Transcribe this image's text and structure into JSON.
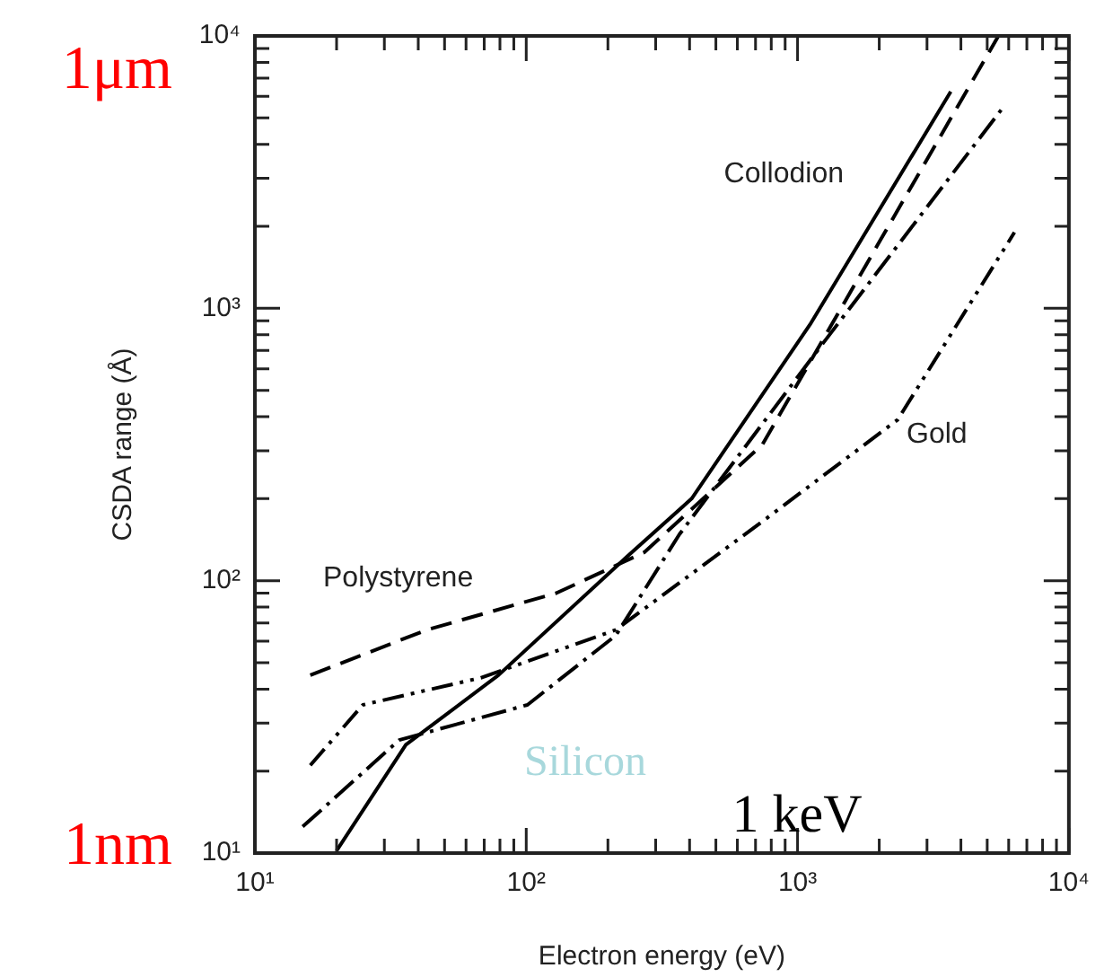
{
  "chart_data": {
    "type": "line",
    "xlabel": "Electron energy (eV)",
    "ylabel": "CSDA range (Å)",
    "log": "xy",
    "grid": false,
    "legend": false,
    "xlim": [
      10,
      10000
    ],
    "ylim": [
      10,
      10000
    ],
    "xticks": [
      {
        "value": 10,
        "label": "10¹"
      },
      {
        "value": 20,
        "label": null
      },
      {
        "value": 30,
        "label": null
      },
      {
        "value": 40,
        "label": null
      },
      {
        "value": 50,
        "label": null
      },
      {
        "value": 60,
        "label": null
      },
      {
        "value": 70,
        "label": null
      },
      {
        "value": 80,
        "label": null
      },
      {
        "value": 90,
        "label": null
      },
      {
        "value": 100,
        "label": "10²"
      },
      {
        "value": 200,
        "label": null
      },
      {
        "value": 300,
        "label": null
      },
      {
        "value": 400,
        "label": null
      },
      {
        "value": 500,
        "label": null
      },
      {
        "value": 600,
        "label": null
      },
      {
        "value": 700,
        "label": null
      },
      {
        "value": 800,
        "label": null
      },
      {
        "value": 900,
        "label": null
      },
      {
        "value": 1000,
        "label": "10³"
      },
      {
        "value": 2000,
        "label": null
      },
      {
        "value": 3000,
        "label": null
      },
      {
        "value": 4000,
        "label": null
      },
      {
        "value": 5000,
        "label": null
      },
      {
        "value": 6000,
        "label": null
      },
      {
        "value": 7000,
        "label": null
      },
      {
        "value": 8000,
        "label": null
      },
      {
        "value": 9000,
        "label": null
      },
      {
        "value": 10000,
        "label": "10⁴"
      }
    ],
    "yticks": [
      {
        "value": 10,
        "label": "10¹"
      },
      {
        "value": 20,
        "label": null
      },
      {
        "value": 30,
        "label": null
      },
      {
        "value": 40,
        "label": null
      },
      {
        "value": 50,
        "label": null
      },
      {
        "value": 60,
        "label": null
      },
      {
        "value": 70,
        "label": null
      },
      {
        "value": 80,
        "label": null
      },
      {
        "value": 90,
        "label": null
      },
      {
        "value": 100,
        "label": "10²"
      },
      {
        "value": 200,
        "label": null
      },
      {
        "value": 300,
        "label": null
      },
      {
        "value": 400,
        "label": null
      },
      {
        "value": 500,
        "label": null
      },
      {
        "value": 600,
        "label": null
      },
      {
        "value": 700,
        "label": null
      },
      {
        "value": 800,
        "label": null
      },
      {
        "value": 900,
        "label": null
      },
      {
        "value": 1000,
        "label": "10³"
      },
      {
        "value": 2000,
        "label": null
      },
      {
        "value": 3000,
        "label": null
      },
      {
        "value": 4000,
        "label": null
      },
      {
        "value": 5000,
        "label": null
      },
      {
        "value": 6000,
        "label": null
      },
      {
        "value": 7000,
        "label": null
      },
      {
        "value": 8000,
        "label": null
      },
      {
        "value": 9000,
        "label": null
      },
      {
        "value": 10000,
        "label": "10⁴"
      }
    ],
    "series": [
      {
        "name": "Collodion",
        "color": "#000000",
        "line_style": "solid",
        "x": [
          20,
          36,
          79,
          234,
          407,
          1110,
          3670
        ],
        "values": [
          10.2,
          25,
          45,
          122,
          200,
          870,
          6250
        ]
      },
      {
        "name": "Polystyrene",
        "color": "#000000",
        "line_style": "dashed",
        "x": [
          16,
          43,
          129,
          272,
          742,
          2020,
          5500
        ],
        "values": [
          45,
          66,
          90,
          127,
          316,
          1780,
          10000
        ]
      },
      {
        "name": "Silicon",
        "color": "#000000",
        "line_style": "dash-dot",
        "x": [
          15,
          34,
          101,
          214,
          367,
          1210,
          5750
        ],
        "values": [
          12.5,
          26,
          35,
          63,
          148,
          720,
          5500
        ]
      },
      {
        "name": "Gold",
        "color": "#000000",
        "line_style": "dash-dot-dot",
        "x": [
          16,
          25,
          68,
          214,
          742,
          2340,
          6300
        ],
        "values": [
          21,
          35,
          44,
          66,
          165,
          390,
          1900
        ]
      }
    ],
    "annotations": [
      "1μm",
      "1nm",
      "1 keV"
    ]
  }
}
